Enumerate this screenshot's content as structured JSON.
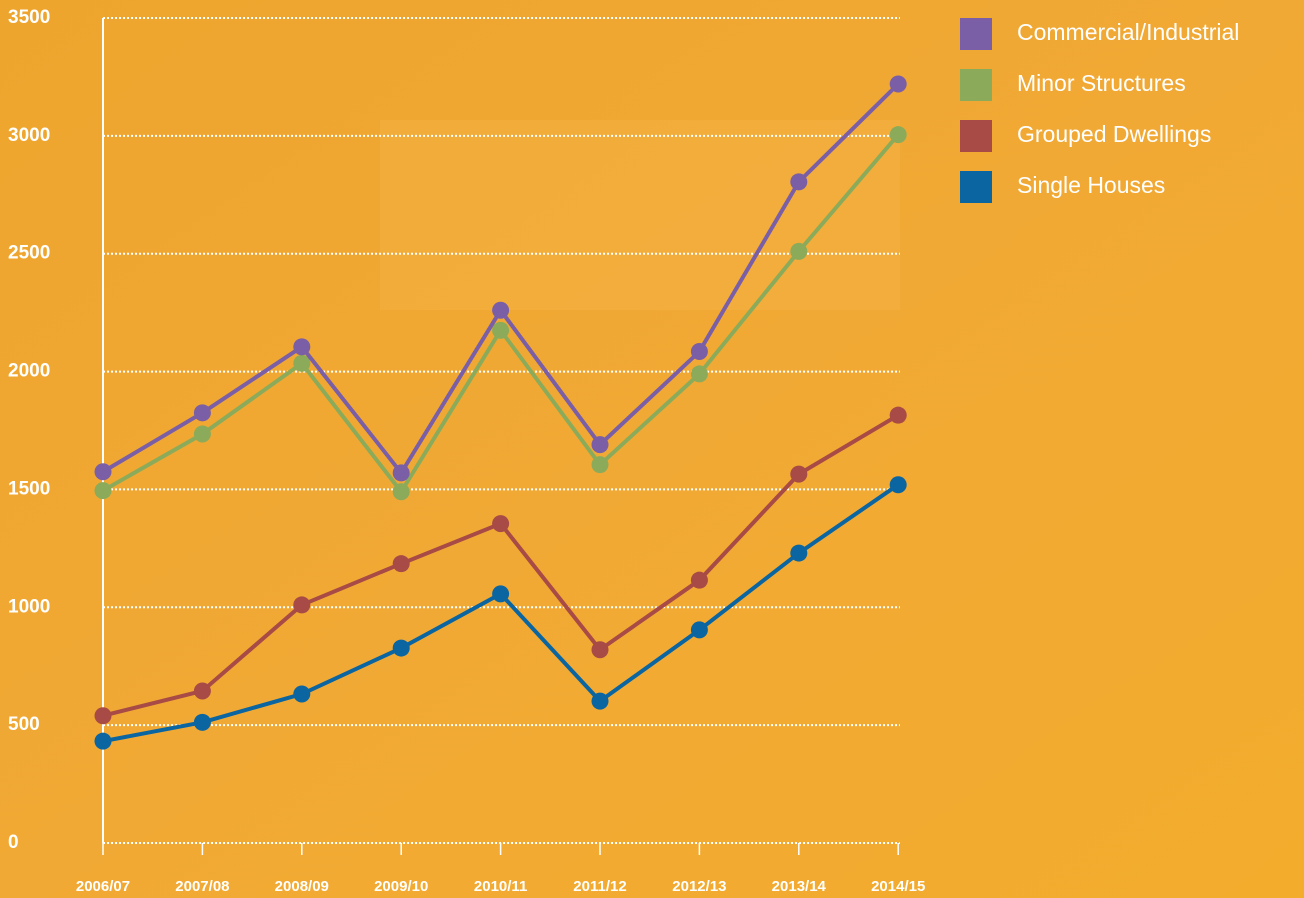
{
  "chart_data": {
    "type": "line",
    "categories": [
      "2006/07",
      "2007/08",
      "2008/09",
      "2009/10",
      "2010/11",
      "2011/12",
      "2012/13",
      "2013/14",
      "2014/15"
    ],
    "series": [
      {
        "name": "Commercial/Industrial",
        "color": "#7a5ea6",
        "values": [
          1575,
          1825,
          2105,
          1570,
          2260,
          1690,
          2085,
          2805,
          3220
        ]
      },
      {
        "name": "Minor Structures",
        "color": "#8bab5a",
        "values": [
          1495,
          1735,
          2035,
          1490,
          2175,
          1605,
          1990,
          2510,
          3005
        ]
      },
      {
        "name": "Grouped Dwellings",
        "color": "#a84a45",
        "values": [
          540,
          645,
          1010,
          1185,
          1355,
          820,
          1115,
          1565,
          1815
        ]
      },
      {
        "name": "Single Houses",
        "color": "#0a65a1",
        "values": [
          432,
          512,
          632,
          827,
          1057,
          602,
          904,
          1230,
          1520
        ]
      }
    ],
    "ylim": [
      0,
      3500
    ],
    "yticks": [
      0,
      500,
      1000,
      1500,
      2000,
      2500,
      3000,
      3500
    ],
    "grid": true,
    "legend": "top-right"
  }
}
